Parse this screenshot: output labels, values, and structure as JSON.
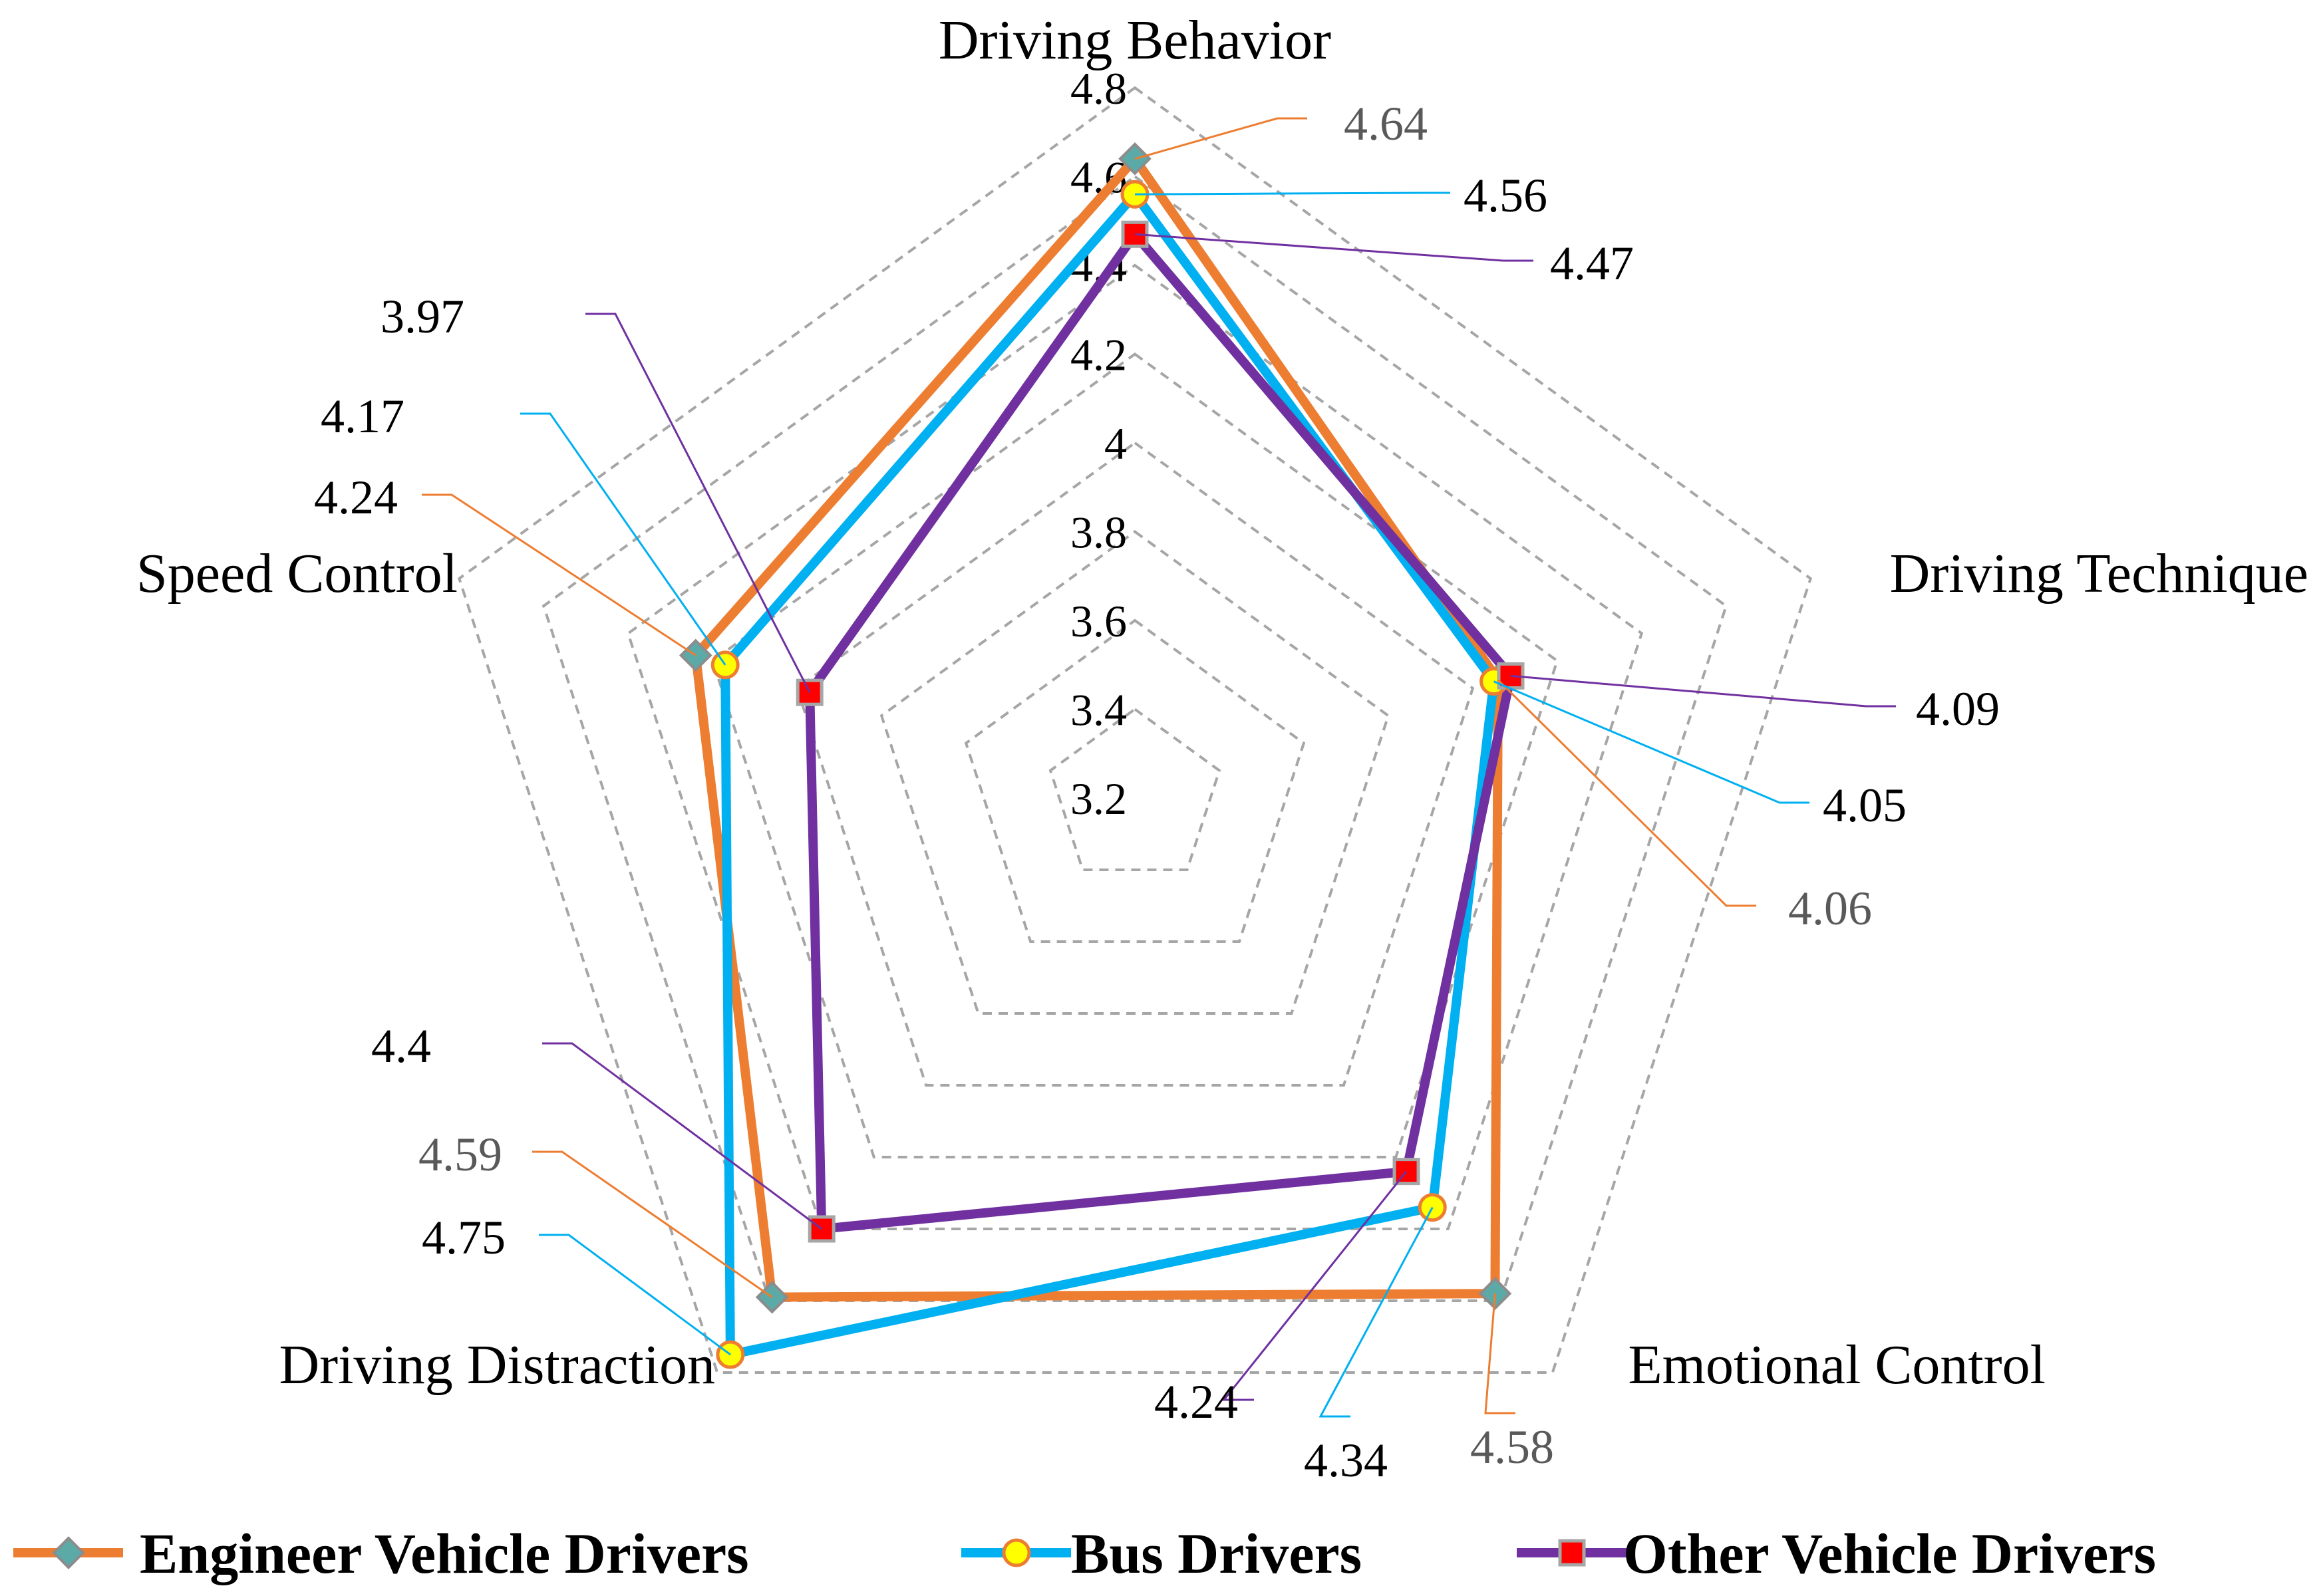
{
  "chart_data": {
    "type": "radar",
    "title": "",
    "categories": [
      "Driving Behavior",
      "Driving Technique",
      "Emotional Control",
      "Driving Distraction",
      "Speed Control"
    ],
    "rlim": [
      3.2,
      4.8
    ],
    "ticks": [
      "3.2",
      "3.4",
      "3.6",
      "3.8",
      "4",
      "4.2",
      "4.4",
      "4.6",
      "4.8"
    ],
    "grid": true,
    "legend_position": "bottom",
    "series": [
      {
        "name": "Engineer Vehicle Drivers",
        "color": "#ED7D31",
        "marker": "diamond",
        "marker_fill": "#5BAAA8",
        "values": [
          4.64,
          4.06,
          4.58,
          4.59,
          4.24
        ],
        "labels": [
          "4.64",
          "4.06",
          "4.58",
          "4.59",
          "4.24"
        ]
      },
      {
        "name": "Bus Drivers",
        "color": "#00B0F0",
        "marker": "circle",
        "marker_fill": "#FFFF00",
        "values": [
          4.56,
          4.05,
          4.34,
          4.75,
          4.17
        ],
        "labels": [
          "4.56",
          "4.05",
          "4.34",
          "4.75",
          "4.17"
        ]
      },
      {
        "name": "Other Vehicle Drivers",
        "color": "#7030A0",
        "marker": "square",
        "marker_fill": "#FF0000",
        "values": [
          4.47,
          4.09,
          4.24,
          4.4,
          3.97
        ],
        "labels": [
          "4.47",
          "4.09",
          "4.24",
          "4.4",
          "3.97"
        ]
      }
    ]
  }
}
